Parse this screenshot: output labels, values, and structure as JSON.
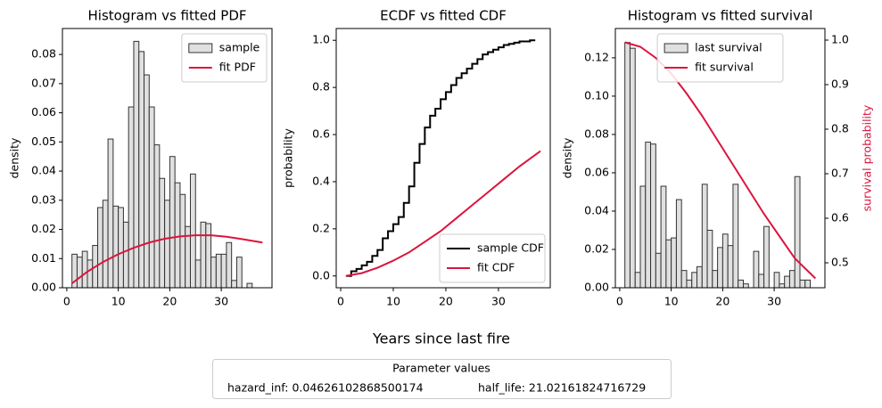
{
  "chart_data": [
    {
      "type": "histogram",
      "title": "Histogram vs fitted PDF",
      "ylabel": "density",
      "bins": [
        1,
        2,
        3,
        4,
        5,
        6,
        7,
        8,
        9,
        10,
        11,
        12,
        13,
        14,
        15,
        16,
        17,
        18,
        19,
        20,
        21,
        22,
        23,
        24,
        25,
        26,
        27,
        28,
        29,
        30,
        31,
        32,
        33,
        34,
        35,
        36,
        37
      ],
      "series": [
        {
          "name": "sample",
          "color": "#e0e0e0",
          "edgecolor": "#333333",
          "values": [
            0.0115,
            0.0105,
            0.0125,
            0.0095,
            0.0145,
            0.0275,
            0.03,
            0.051,
            0.028,
            0.0275,
            0.0225,
            0.062,
            0.0845,
            0.081,
            0.073,
            0.062,
            0.049,
            0.0375,
            0.03,
            0.045,
            0.036,
            0.032,
            0.021,
            0.039,
            0.0095,
            0.0225,
            0.022,
            0.0105,
            0.0115,
            0.0115,
            0.0155,
            0.0025,
            0.0105,
            0,
            0.0015,
            0
          ]
        },
        {
          "name": "fit PDF",
          "color": "#dc143c",
          "x": [
            1,
            4,
            7,
            10,
            13,
            16,
            19,
            22,
            25,
            28,
            31,
            34,
            38
          ],
          "values": [
            0.0015,
            0.0055,
            0.0088,
            0.0115,
            0.0137,
            0.0155,
            0.0168,
            0.0176,
            0.018,
            0.018,
            0.0175,
            0.0167,
            0.0155
          ]
        }
      ],
      "xlim": [
        -0.85,
        39.85
      ],
      "ylim": [
        0,
        0.0889
      ],
      "xticks": [
        0,
        10,
        20,
        30
      ],
      "yticks": [
        {
          "value": 0,
          "label": "0.00"
        },
        0.01,
        0.02,
        0.03,
        0.04,
        0.05,
        0.06,
        0.07,
        0.08
      ],
      "legend": "upper right"
    },
    {
      "type": "line",
      "title": "ECDF vs fitted CDF",
      "ylabel": "probability",
      "series": [
        {
          "name": "sample CDF",
          "color": "#000000",
          "step": true,
          "x": [
            1,
            2,
            3,
            4,
            5,
            6,
            7,
            8,
            9,
            10,
            11,
            12,
            13,
            14,
            15,
            16,
            17,
            18,
            19,
            20,
            21,
            22,
            23,
            24,
            25,
            26,
            27,
            28,
            29,
            30,
            31,
            32,
            33,
            34,
            35,
            36,
            37
          ],
          "values": [
            0,
            0.02,
            0.03,
            0.045,
            0.06,
            0.085,
            0.11,
            0.16,
            0.19,
            0.22,
            0.25,
            0.31,
            0.38,
            0.48,
            0.56,
            0.63,
            0.68,
            0.71,
            0.75,
            0.78,
            0.81,
            0.84,
            0.86,
            0.88,
            0.9,
            0.92,
            0.94,
            0.95,
            0.96,
            0.97,
            0.98,
            0.985,
            0.99,
            0.995,
            0.995,
            1,
            1
          ]
        },
        {
          "name": "fit CDF",
          "color": "#dc143c",
          "x": [
            1,
            4,
            7,
            10,
            13,
            16,
            19,
            22,
            25,
            28,
            31,
            34,
            38
          ],
          "values": [
            0,
            0.012,
            0.035,
            0.065,
            0.1,
            0.145,
            0.19,
            0.245,
            0.3,
            0.355,
            0.41,
            0.465,
            0.53
          ]
        }
      ],
      "xlim": [
        -0.85,
        39.85
      ],
      "ylim": [
        -0.05,
        1.05
      ],
      "xticks": [
        0,
        10,
        20,
        30
      ],
      "yticks": [
        {
          "value": 0,
          "label": "0.0"
        },
        0.2,
        0.4,
        0.6,
        0.8,
        {
          "value": 1,
          "label": "1.0"
        }
      ],
      "legend": "lower right"
    },
    {
      "type": "histogram",
      "title": "Histogram vs fitted survival",
      "ylabel": "density",
      "y2label": "survival probability",
      "y2label_color": "#dc143c",
      "bins": [
        1,
        2,
        3,
        4,
        5,
        6,
        7,
        8,
        9,
        10,
        11,
        12,
        13,
        14,
        15,
        16,
        17,
        18,
        19,
        20,
        21,
        22,
        23,
        24,
        25,
        26,
        27,
        28,
        29,
        30,
        31,
        32,
        33,
        34,
        35,
        36,
        37
      ],
      "series": [
        {
          "name": "last survival",
          "color": "#e0e0e0",
          "edgecolor": "#333333",
          "values": [
            0.128,
            0.125,
            0.008,
            0.053,
            0.076,
            0.075,
            0.018,
            0.053,
            0.025,
            0.026,
            0.046,
            0.009,
            0.004,
            0.008,
            0.011,
            0.054,
            0.03,
            0.009,
            0.021,
            0.028,
            0.022,
            0.054,
            0.004,
            0.002,
            0,
            0.019,
            0.007,
            0.032,
            0,
            0.008,
            0.002,
            0.006,
            0.009,
            0.058,
            0.004,
            0.004
          ]
        },
        {
          "name": "fit survival",
          "color": "#dc143c",
          "axis": "y2",
          "x": [
            1,
            4,
            7,
            10,
            13,
            16,
            19,
            22,
            25,
            28,
            31,
            34,
            38
          ],
          "values": [
            0.995,
            0.985,
            0.96,
            0.925,
            0.88,
            0.83,
            0.775,
            0.72,
            0.665,
            0.61,
            0.56,
            0.51,
            0.465
          ]
        }
      ],
      "xlim": [
        -0.85,
        39.85
      ],
      "ylim": [
        0,
        0.1353
      ],
      "y2lim": [
        0.444,
        1.026
      ],
      "xticks": [
        0,
        10,
        20,
        30
      ],
      "yticks": [
        {
          "value": 0,
          "label": "0.00"
        },
        0.02,
        0.04,
        0.06,
        0.08,
        {
          "value": 0.1,
          "label": "0.10"
        },
        0.12
      ],
      "y2ticks": [
        0.5,
        0.6,
        0.7,
        0.8,
        0.9,
        {
          "value": 1,
          "label": "1.0"
        }
      ],
      "legend": "upper center"
    }
  ],
  "xlabel": "Years since last fire",
  "parameters": {
    "title": "Parameter values",
    "items": [
      "hazard_inf: 0.04626102868500174",
      "half_life: 21.02161824716729"
    ]
  }
}
